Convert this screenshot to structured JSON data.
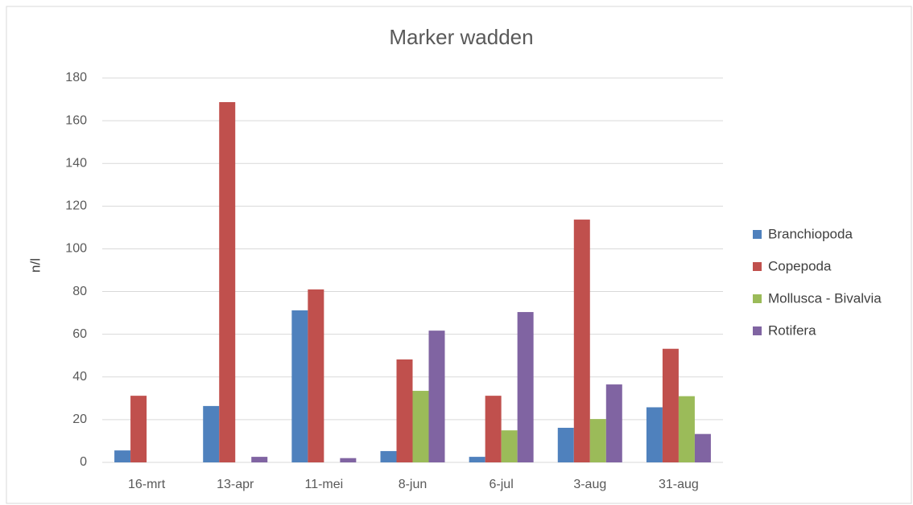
{
  "chart_data": {
    "type": "bar",
    "title": "Marker wadden",
    "y_label": "n/l",
    "categories": [
      "16-mrt",
      "13-apr",
      "11-mei",
      "8-jun",
      "6-jul",
      "3-aug",
      "31-aug"
    ],
    "series": [
      {
        "name": "Branchiopoda",
        "color": "#4f81bd",
        "values": [
          5.6,
          26.4,
          71.2,
          5.3,
          2.6,
          16.2,
          25.8
        ]
      },
      {
        "name": "Copepoda",
        "color": "#c0504d",
        "values": [
          31.2,
          168.7,
          81,
          48.2,
          31.2,
          113.7,
          53.2
        ]
      },
      {
        "name": "Mollusca - Bivalvia",
        "color": "#9bbb59",
        "values": [
          0,
          0,
          0,
          33.5,
          15,
          20.3,
          31
        ]
      },
      {
        "name": "Rotifera",
        "color": "#8064a2",
        "values": [
          0,
          2.6,
          2,
          61.7,
          70.4,
          36.5,
          13.3
        ]
      }
    ],
    "ylim": [
      0,
      180
    ],
    "yticks": [
      0,
      20,
      40,
      60,
      80,
      100,
      120,
      140,
      160,
      180
    ],
    "grid": true,
    "legend": "right"
  }
}
